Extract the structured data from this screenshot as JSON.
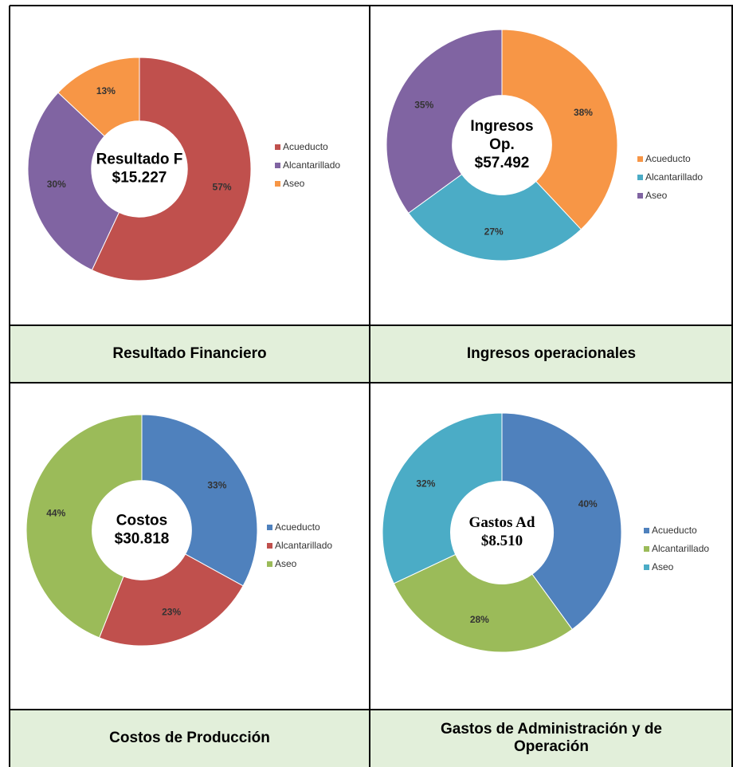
{
  "chart_data": [
    {
      "type": "donut",
      "center_text": [
        "Resultado F",
        "$15.227"
      ],
      "categories": [
        "Acueducto",
        "Alcantarillado",
        "Aseo"
      ],
      "values": [
        57,
        30,
        13
      ],
      "value_labels": [
        "57%",
        "30%",
        "13%"
      ],
      "colors": [
        "#c0504d",
        "#8064a2",
        "#f79646"
      ],
      "legend": "right"
    },
    {
      "type": "donut",
      "center_text": [
        "Ingresos",
        "Op.",
        "$57.492"
      ],
      "categories": [
        "Acueducto",
        "Alcantarillado",
        "Aseo"
      ],
      "values": [
        38,
        27,
        35
      ],
      "value_labels": [
        "38%",
        "27%",
        "35%"
      ],
      "colors": [
        "#f79646",
        "#4bacc6",
        "#8064a2"
      ],
      "legend": "right"
    },
    {
      "type": "donut",
      "center_text": [
        "Costos",
        "$30.818"
      ],
      "categories": [
        "Acueducto",
        "Alcantarillado",
        "Aseo"
      ],
      "values": [
        33,
        23,
        44
      ],
      "value_labels": [
        "33%",
        "23%",
        "44%"
      ],
      "colors": [
        "#4f81bd",
        "#c0504d",
        "#9bbb59"
      ],
      "legend": "right"
    },
    {
      "type": "donut",
      "center_text": [
        "Gastos Ad",
        "$8.510"
      ],
      "categories": [
        "Acueducto",
        "Alcantarillado",
        "Aseo"
      ],
      "values": [
        40,
        28,
        32
      ],
      "value_labels": [
        "40%",
        "28%",
        "32%"
      ],
      "colors": [
        "#4f81bd",
        "#9bbb59",
        "#4bacc6"
      ],
      "legend": "right"
    }
  ],
  "captions": [
    [
      "Resultado Financiero"
    ],
    [
      "Ingresos operacionales"
    ],
    [
      "Costos de Producción"
    ],
    [
      "Gastos de Administración y de",
      "Operación"
    ]
  ]
}
